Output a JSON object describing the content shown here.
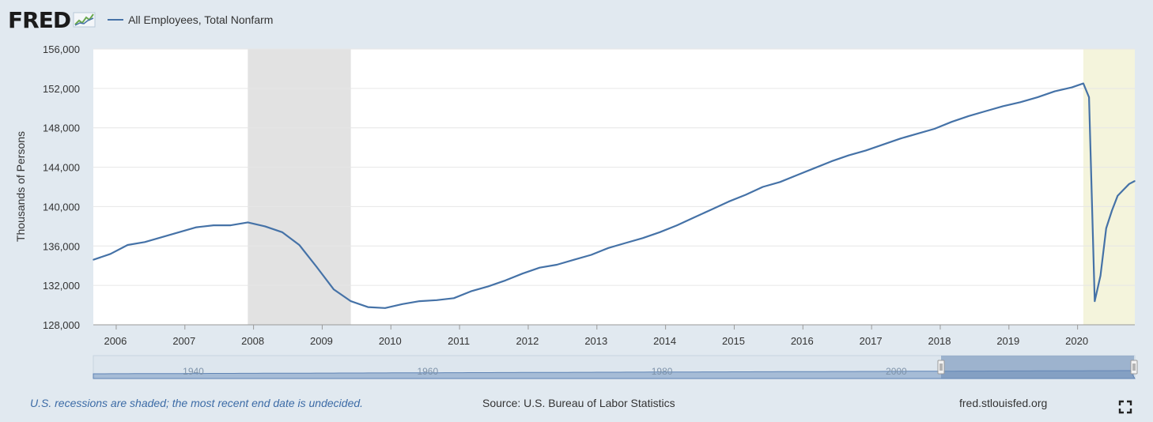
{
  "header": {
    "logo_text": "FRED",
    "series_name": "All Employees, Total Nonfarm"
  },
  "colors": {
    "line": "#4572a7",
    "recession_shade": "#e2e2e2",
    "undecided_shade": "#f4f4dc",
    "background": "#e1e9f0",
    "plot_background": "#ffffff"
  },
  "footer": {
    "note": "U.S. recessions are shaded; the most recent end date is undecided.",
    "source": "Source: U.S. Bureau of Labor Statistics",
    "site": "fred.stlouisfed.org"
  },
  "navigator": {
    "labels": [
      "1940",
      "1960",
      "1980",
      "2000"
    ]
  },
  "chart_data": {
    "type": "line",
    "ylabel": "Thousands of Persons",
    "ylim": [
      128000,
      156000
    ],
    "xlim": [
      "2005-09",
      "2020-11"
    ],
    "grid": true,
    "y_ticks": [
      "128,000",
      "132,000",
      "136,000",
      "140,000",
      "144,000",
      "148,000",
      "152,000",
      "156,000"
    ],
    "y_tick_values": [
      128000,
      132000,
      136000,
      140000,
      144000,
      148000,
      152000,
      156000
    ],
    "x_ticks": [
      "2006",
      "2007",
      "2008",
      "2009",
      "2010",
      "2011",
      "2012",
      "2013",
      "2014",
      "2015",
      "2016",
      "2017",
      "2018",
      "2019",
      "2020"
    ],
    "recessions": [
      {
        "start": "2007-12",
        "end": "2009-06"
      },
      {
        "start": "2020-02",
        "end": "2020-11",
        "undecided": true
      }
    ],
    "series": [
      {
        "name": "All Employees, Total Nonfarm",
        "x": [
          "2005-09",
          "2005-12",
          "2006-03",
          "2006-06",
          "2006-09",
          "2006-12",
          "2007-03",
          "2007-06",
          "2007-09",
          "2007-12",
          "2008-03",
          "2008-06",
          "2008-09",
          "2008-12",
          "2009-03",
          "2009-06",
          "2009-09",
          "2009-12",
          "2010-03",
          "2010-06",
          "2010-09",
          "2010-12",
          "2011-03",
          "2011-06",
          "2011-09",
          "2011-12",
          "2012-03",
          "2012-06",
          "2012-09",
          "2012-12",
          "2013-03",
          "2013-06",
          "2013-09",
          "2013-12",
          "2014-03",
          "2014-06",
          "2014-09",
          "2014-12",
          "2015-03",
          "2015-06",
          "2015-09",
          "2015-12",
          "2016-03",
          "2016-06",
          "2016-09",
          "2016-12",
          "2017-03",
          "2017-06",
          "2017-09",
          "2017-12",
          "2018-03",
          "2018-06",
          "2018-09",
          "2018-12",
          "2019-03",
          "2019-06",
          "2019-09",
          "2019-12",
          "2020-01",
          "2020-02",
          "2020-03",
          "2020-04",
          "2020-05",
          "2020-06",
          "2020-07",
          "2020-08",
          "2020-09",
          "2020-10",
          "2020-11"
        ],
        "values": [
          134600,
          135200,
          136100,
          136400,
          136900,
          137400,
          137900,
          138100,
          138100,
          138400,
          138000,
          137400,
          136100,
          133900,
          131600,
          130400,
          129800,
          129700,
          130100,
          130400,
          130500,
          130700,
          131400,
          131900,
          132500,
          133200,
          133800,
          134100,
          134600,
          135100,
          135800,
          136300,
          136800,
          137400,
          138100,
          138900,
          139700,
          140500,
          141200,
          142000,
          142500,
          143200,
          143900,
          144600,
          145200,
          145700,
          146300,
          146900,
          147400,
          147900,
          148600,
          149200,
          149700,
          150200,
          150600,
          151100,
          151700,
          152100,
          152300,
          152500,
          151100,
          130400,
          133000,
          137800,
          139600,
          141100,
          141700,
          142300,
          142600
        ]
      }
    ]
  }
}
